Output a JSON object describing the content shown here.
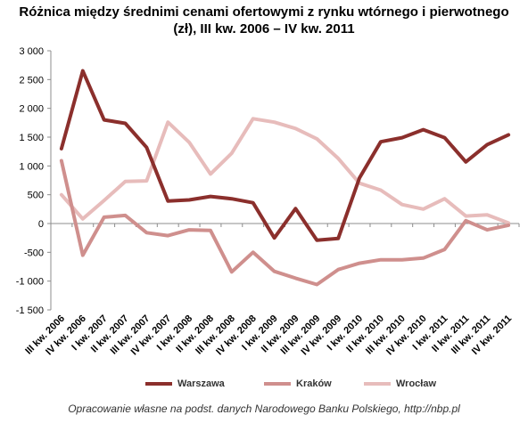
{
  "title_line1": "Różnica między średnimi cenami ofertowymi z rynku wtórnego i pierwotnego",
  "title_line2": "(zł), III kw. 2006 – IV kw. 2011",
  "source": "Opracowanie  własne na podst. danych Narodowego  Banku Polskiego, http://nbp.pl",
  "chart_data": {
    "type": "line",
    "ylim": [
      -1500,
      3000
    ],
    "yticks": [
      "3 000",
      "2 500",
      "2 000",
      "1 500",
      "1 000",
      "500",
      "0",
      "-500",
      "-1 000",
      "-1 500"
    ],
    "ytick_values": [
      3000,
      2500,
      2000,
      1500,
      1000,
      500,
      0,
      -500,
      -1000,
      -1500
    ],
    "grid": false,
    "legend": "bottom",
    "categories": [
      "III kw. 2006",
      "IV kw. 2006",
      "I kw. 2007",
      "II kw. 2007",
      "III kw. 2007",
      "IV kw. 2007",
      "I kw. 2008",
      "II kw. 2008",
      "III kw. 2008",
      "IV kw. 2008",
      "I kw. 2009",
      "II kw. 2009",
      "III kw. 2009",
      "IV kw. 2009",
      "I kw. 2010",
      "II kw. 2010",
      "III kw. 2010",
      "IV kw. 2010",
      "I kw. 2011",
      "II kw. 2011",
      "III kw. 2011",
      "IV kw. 2011"
    ],
    "series": [
      {
        "name": "Warszawa",
        "color": "#8b2f2c",
        "values": [
          1300,
          2650,
          1800,
          1740,
          1320,
          390,
          410,
          470,
          430,
          360,
          -250,
          260,
          -290,
          -260,
          790,
          1420,
          1490,
          1630,
          1490,
          1070,
          1370,
          1540
        ]
      },
      {
        "name": "Kraków",
        "color": "#cf8f8d",
        "values": [
          1090,
          -550,
          110,
          140,
          -160,
          -210,
          -110,
          -120,
          -840,
          -500,
          -830,
          -950,
          -1060,
          -800,
          -690,
          -630,
          -630,
          -600,
          -450,
          50,
          -110,
          -30
        ]
      },
      {
        "name": "Wrocław",
        "color": "#e7bcbb",
        "values": [
          500,
          80,
          400,
          730,
          740,
          1760,
          1410,
          860,
          1220,
          1820,
          1760,
          1650,
          1470,
          1130,
          700,
          580,
          330,
          250,
          430,
          130,
          150,
          10
        ]
      }
    ]
  }
}
